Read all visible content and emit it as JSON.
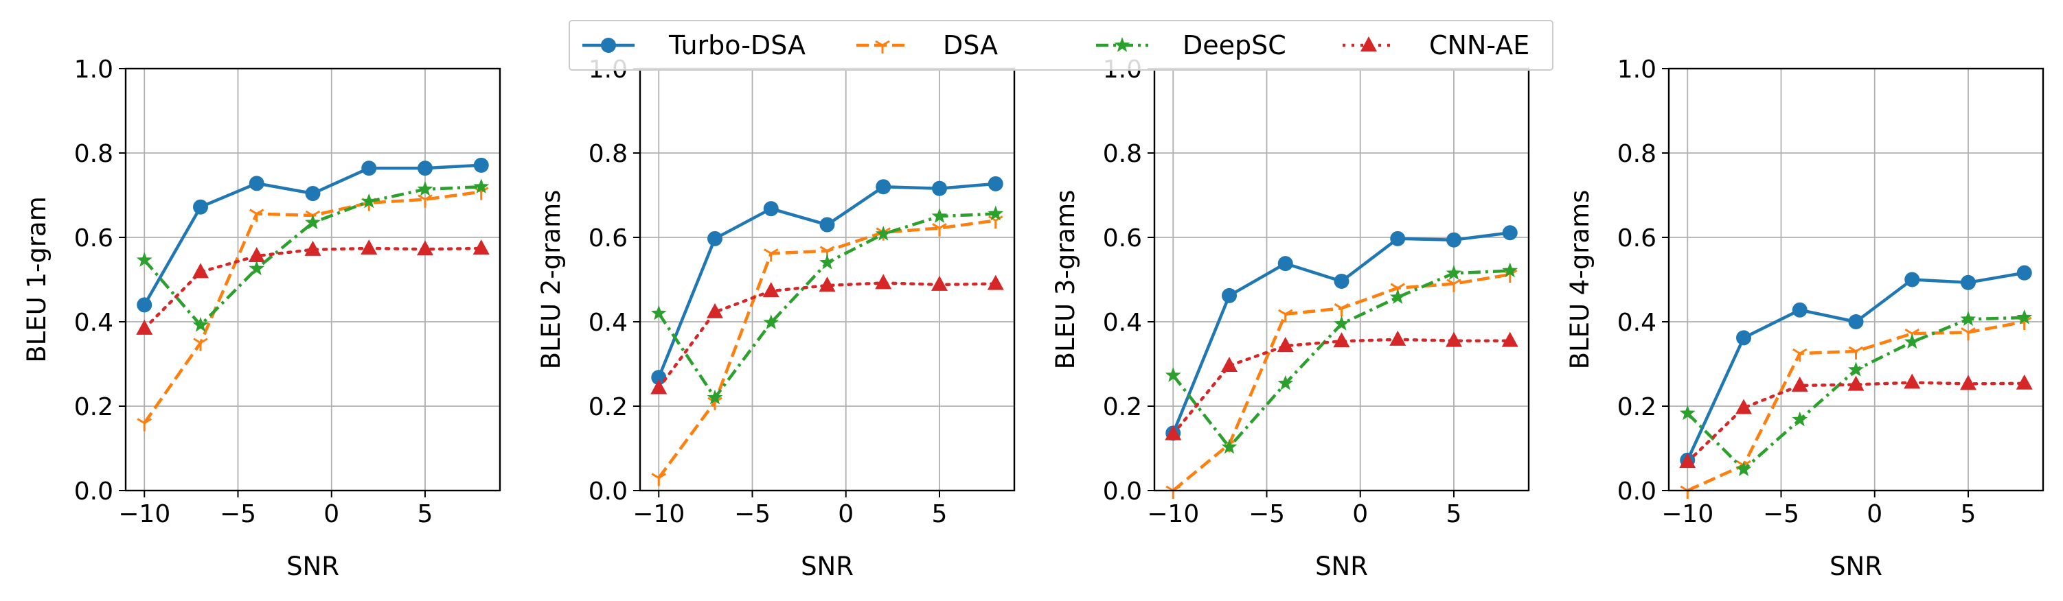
{
  "chart_data": [
    {
      "type": "line",
      "xlabel": "SNR",
      "ylabel": "BLEU 1-gram",
      "xlim": [
        -11,
        9
      ],
      "ylim": [
        0.0,
        1.0
      ],
      "xticks": [
        -10,
        -5,
        0,
        5
      ],
      "xtick_labels": [
        "−10",
        "−5",
        "0",
        "5"
      ],
      "yticks": [
        0.0,
        0.2,
        0.4,
        0.6,
        0.8,
        1.0
      ],
      "ytick_labels": [
        "0.0",
        "0.2",
        "0.4",
        "0.6",
        "0.8",
        "1.0"
      ],
      "grid": true,
      "x": [
        -10,
        -7,
        -4,
        -1,
        2,
        5,
        8
      ],
      "series": [
        {
          "name": "Turbo-DSA",
          "values": [
            0.44,
            0.672,
            0.728,
            0.704,
            0.764,
            0.764,
            0.771
          ]
        },
        {
          "name": "DSA",
          "values": [
            0.16,
            0.35,
            0.656,
            0.652,
            0.682,
            0.69,
            0.708
          ]
        },
        {
          "name": "DeepSC",
          "values": [
            0.546,
            0.392,
            0.526,
            0.635,
            0.685,
            0.714,
            0.72
          ]
        },
        {
          "name": "CNN-AE",
          "values": [
            0.384,
            0.518,
            0.556,
            0.571,
            0.574,
            0.572,
            0.574
          ]
        }
      ]
    },
    {
      "type": "line",
      "xlabel": "SNR",
      "ylabel": "BLEU 2-grams",
      "xlim": [
        -11,
        9
      ],
      "ylim": [
        0.0,
        1.0
      ],
      "xticks": [
        -10,
        -5,
        0,
        5
      ],
      "xtick_labels": [
        "−10",
        "−5",
        "0",
        "5"
      ],
      "yticks": [
        0.0,
        0.2,
        0.4,
        0.6,
        0.8,
        1.0
      ],
      "ytick_labels": [
        "0.0",
        "0.2",
        "0.4",
        "0.6",
        "0.8",
        "1.0"
      ],
      "grid": true,
      "x": [
        -10,
        -7,
        -4,
        -1,
        2,
        5,
        8
      ],
      "series": [
        {
          "name": "Turbo-DSA",
          "values": [
            0.268,
            0.597,
            0.668,
            0.63,
            0.72,
            0.716,
            0.727
          ]
        },
        {
          "name": "DSA",
          "values": [
            0.03,
            0.21,
            0.562,
            0.568,
            0.612,
            0.622,
            0.64
          ]
        },
        {
          "name": "DeepSC",
          "values": [
            0.42,
            0.22,
            0.398,
            0.54,
            0.608,
            0.65,
            0.656
          ]
        },
        {
          "name": "CNN-AE",
          "values": [
            0.243,
            0.423,
            0.473,
            0.486,
            0.492,
            0.488,
            0.49
          ]
        }
      ]
    },
    {
      "type": "line",
      "xlabel": "SNR",
      "ylabel": "BLEU 3-grams",
      "xlim": [
        -11,
        9
      ],
      "ylim": [
        0.0,
        1.0
      ],
      "xticks": [
        -10,
        -5,
        0,
        5
      ],
      "xtick_labels": [
        "−10",
        "−5",
        "0",
        "5"
      ],
      "yticks": [
        0.0,
        0.2,
        0.4,
        0.6,
        0.8,
        1.0
      ],
      "ytick_labels": [
        "0.0",
        "0.2",
        "0.4",
        "0.6",
        "0.8",
        "1.0"
      ],
      "grid": true,
      "x": [
        -10,
        -7,
        -4,
        -1,
        2,
        5,
        8
      ],
      "series": [
        {
          "name": "Turbo-DSA",
          "values": [
            0.136,
            0.462,
            0.538,
            0.496,
            0.597,
            0.594,
            0.611
          ]
        },
        {
          "name": "DSA",
          "values": [
            0.0,
            0.11,
            0.418,
            0.432,
            0.48,
            0.49,
            0.512
          ]
        },
        {
          "name": "DeepSC",
          "values": [
            0.273,
            0.103,
            0.254,
            0.395,
            0.458,
            0.515,
            0.521
          ]
        },
        {
          "name": "CNN-AE",
          "values": [
            0.134,
            0.296,
            0.343,
            0.354,
            0.358,
            0.355,
            0.355
          ]
        }
      ]
    },
    {
      "type": "line",
      "xlabel": "SNR",
      "ylabel": "BLEU 4-grams",
      "xlim": [
        -11,
        9
      ],
      "ylim": [
        0.0,
        1.0
      ],
      "xticks": [
        -10,
        -5,
        0,
        5
      ],
      "xtick_labels": [
        "−10",
        "−5",
        "0",
        "5"
      ],
      "yticks": [
        0.0,
        0.2,
        0.4,
        0.6,
        0.8,
        1.0
      ],
      "ytick_labels": [
        "0.0",
        "0.2",
        "0.4",
        "0.6",
        "0.8",
        "1.0"
      ],
      "grid": true,
      "x": [
        -10,
        -7,
        -4,
        -1,
        2,
        5,
        8
      ],
      "series": [
        {
          "name": "Turbo-DSA",
          "values": [
            0.072,
            0.362,
            0.428,
            0.4,
            0.5,
            0.493,
            0.516
          ]
        },
        {
          "name": "DSA",
          "values": [
            0.0,
            0.06,
            0.325,
            0.33,
            0.372,
            0.375,
            0.4
          ]
        },
        {
          "name": "DeepSC",
          "values": [
            0.183,
            0.05,
            0.168,
            0.286,
            0.352,
            0.406,
            0.41
          ]
        },
        {
          "name": "CNN-AE",
          "values": [
            0.068,
            0.196,
            0.249,
            0.251,
            0.256,
            0.253,
            0.254
          ]
        }
      ]
    }
  ],
  "legend": {
    "placement": "top-center",
    "entries": [
      "Turbo-DSA",
      "DSA",
      "DeepSC",
      "CNN-AE"
    ]
  },
  "styles": {
    "Turbo-DSA": {
      "color": "#1f77b4",
      "dash": "solid",
      "marker": "circle"
    },
    "DSA": {
      "color": "#ff7f0e",
      "dash": "dashed",
      "marker": "tri-down"
    },
    "DeepSC": {
      "color": "#2ca02c",
      "dash": "dashdot",
      "marker": "star"
    },
    "CNN-AE": {
      "color": "#d62728",
      "dash": "dotted",
      "marker": "triangle-up"
    }
  }
}
